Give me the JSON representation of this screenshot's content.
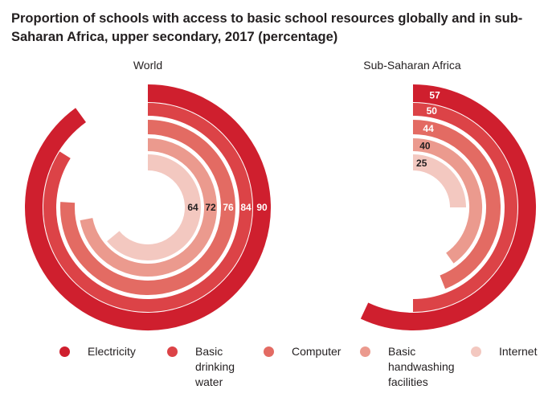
{
  "title": "Proportion of schools with access to basic school resources globally and in sub-Saharan Africa, upper secondary, 2017 (percentage)",
  "chart_data": {
    "type": "radial-bar",
    "title": "Proportion of schools with access to basic school resources globally and in sub-Saharan Africa, upper secondary, 2017 (percentage)",
    "unit": "percentage",
    "categories": [
      "Electricity",
      "Basic drinking water",
      "Computer",
      "Basic handwashing facilities",
      "Internet"
    ],
    "colors": [
      "#cf1f2e",
      "#dc4347",
      "#e36b63",
      "#eb9a8e",
      "#f3c8c0"
    ],
    "panels": [
      {
        "name": "World",
        "values": [
          90,
          84,
          76,
          72,
          64
        ]
      },
      {
        "name": "Sub-Saharan Africa",
        "values": [
          57,
          50,
          44,
          40,
          25
        ]
      }
    ],
    "legend_position": "bottom"
  },
  "legend": [
    {
      "label": "Electricity"
    },
    {
      "label": "Basic drinking water"
    },
    {
      "label": "Computer"
    },
    {
      "label": "Basic handwashing facilities"
    },
    {
      "label": "Internet"
    }
  ]
}
